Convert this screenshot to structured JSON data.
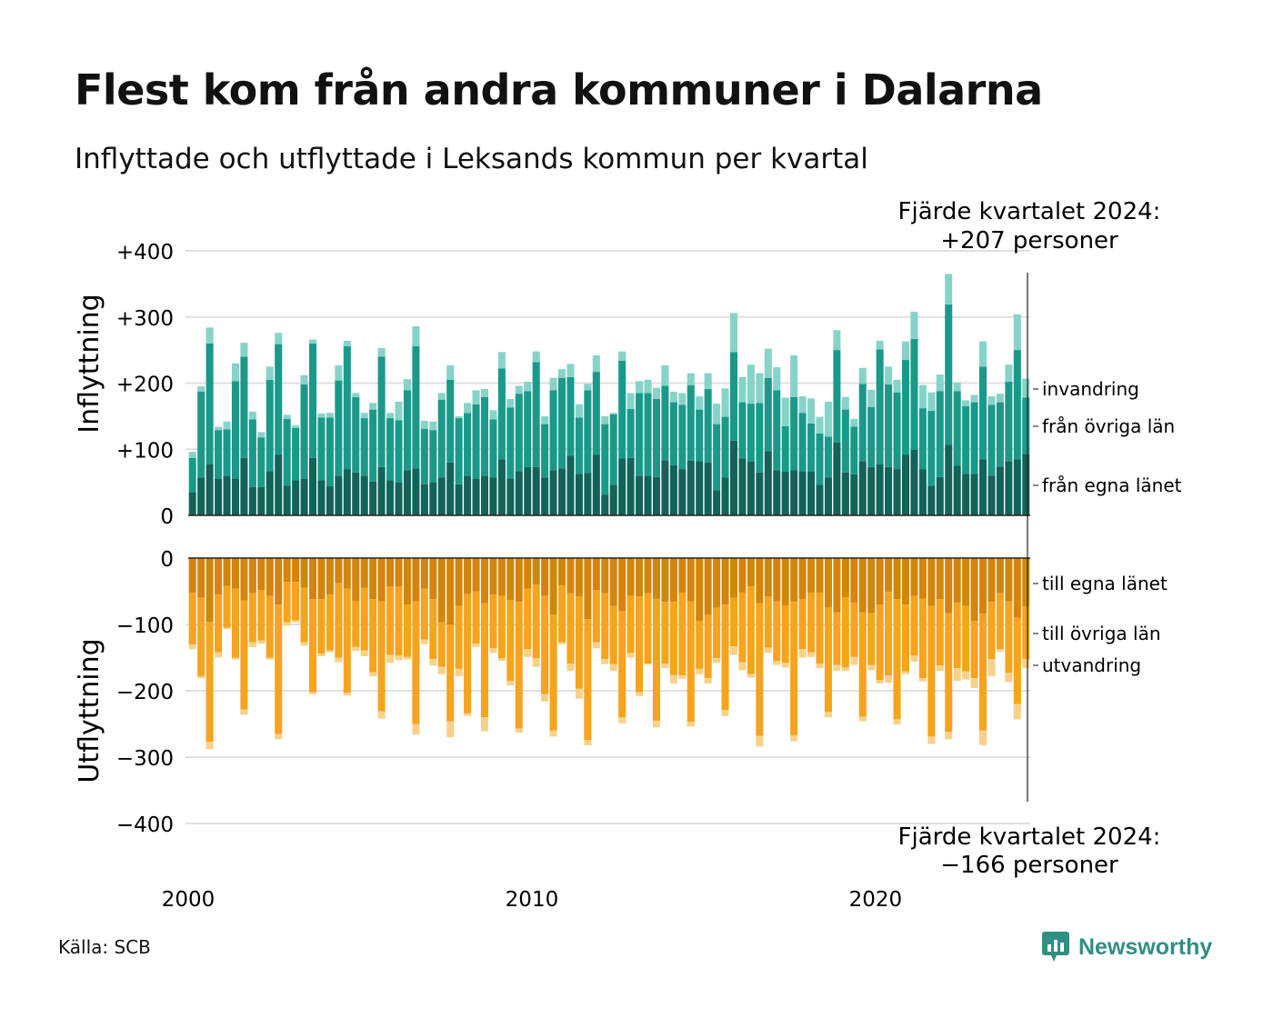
{
  "title": "Flest kom från andra kommuner i Dalarna",
  "subtitle": "Inflyttade och utflyttade i Leksands kommun per kvartal",
  "source": "Källa: SCB",
  "brand": "Newsworthy",
  "colors": {
    "in_own": "#12635a",
    "in_other": "#1a998a",
    "in_imm": "#86d3c9",
    "out_own": "#d4850c",
    "out_other": "#f6a31d",
    "out_emig": "#f8d189",
    "grid": "#e0e0e0",
    "axis": "#222222"
  },
  "chart_data": [
    {
      "type": "bar",
      "stacked": true,
      "panel": "Inflyttning",
      "ylabel": "Inflyttning",
      "ylim": [
        0,
        400
      ],
      "yticks": [
        0,
        100,
        200,
        300,
        400
      ],
      "ytick_labels": [
        "0",
        "+100",
        "+200",
        "+300",
        "+400"
      ],
      "annotation": {
        "line1": "Fjärde kvartalet 2024:",
        "line2": "+207 personer"
      },
      "x_start": 2000,
      "x_step": 0.25,
      "xticks": [
        2000,
        2010,
        2020
      ],
      "series": [
        {
          "name": "från egna länet",
          "values": [
            35,
            57,
            78,
            55,
            60,
            55,
            87,
            43,
            43,
            67,
            92,
            45,
            53,
            55,
            87,
            53,
            44,
            60,
            70,
            65,
            60,
            51,
            73,
            53,
            50,
            68,
            71,
            47,
            50,
            57,
            80,
            47,
            60,
            55,
            60,
            57,
            85,
            56,
            67,
            73,
            73,
            57,
            68,
            71,
            90,
            63,
            64,
            92,
            31,
            46,
            86,
            87,
            60,
            60,
            58,
            83,
            76,
            70,
            83,
            82,
            80,
            38,
            57,
            113,
            86,
            82,
            65,
            97,
            68,
            66,
            68,
            67,
            66,
            46,
            57,
            110,
            65,
            62,
            82,
            73,
            77,
            73,
            70,
            92,
            99,
            70,
            45,
            58,
            107,
            75,
            63,
            63,
            85,
            60,
            74,
            82,
            85,
            93
          ]
        },
        {
          "name": "från övriga län",
          "values": [
            52,
            130,
            182,
            74,
            70,
            148,
            153,
            102,
            75,
            138,
            167,
            101,
            79,
            143,
            173,
            95,
            104,
            144,
            186,
            114,
            87,
            109,
            167,
            94,
            94,
            121,
            185,
            84,
            79,
            118,
            125,
            100,
            95,
            113,
            119,
            88,
            137,
            107,
            117,
            115,
            159,
            81,
            121,
            137,
            119,
            85,
            125,
            125,
            107,
            107,
            148,
            74,
            125,
            125,
            118,
            113,
            95,
            97,
            114,
            78,
            111,
            100,
            92,
            134,
            85,
            87,
            105,
            111,
            121,
            69,
            111,
            88,
            73,
            78,
            62,
            140,
            95,
            72,
            117,
            91,
            174,
            125,
            116,
            143,
            168,
            92,
            113,
            130,
            212,
            113,
            102,
            108,
            140,
            107,
            97,
            120,
            165,
            85
          ]
        },
        {
          "name": "invandring",
          "values": [
            9,
            8,
            24,
            5,
            12,
            27,
            21,
            12,
            8,
            20,
            17,
            6,
            4,
            14,
            6,
            6,
            7,
            23,
            8,
            6,
            8,
            10,
            13,
            8,
            28,
            17,
            30,
            12,
            13,
            10,
            22,
            3,
            15,
            21,
            12,
            14,
            25,
            13,
            12,
            14,
            16,
            12,
            19,
            13,
            20,
            20,
            10,
            25,
            12,
            2,
            14,
            24,
            18,
            20,
            17,
            31,
            16,
            18,
            18,
            20,
            24,
            31,
            43,
            59,
            38,
            59,
            45,
            44,
            35,
            43,
            63,
            25,
            38,
            25,
            53,
            30,
            19,
            12,
            24,
            26,
            13,
            27,
            19,
            28,
            41,
            35,
            28,
            25,
            46,
            13,
            9,
            11,
            38,
            13,
            13,
            26,
            54,
            29
          ]
        }
      ]
    },
    {
      "type": "bar",
      "stacked": true,
      "panel": "Utflyttning",
      "ylabel": "Utflyttning",
      "ylim": [
        -400,
        0
      ],
      "yticks": [
        0,
        -100,
        -200,
        -300,
        -400
      ],
      "ytick_labels": [
        "0",
        "−100",
        "−200",
        "−300",
        "−400"
      ],
      "annotation": {
        "line1": "Fjärde kvartalet 2024:",
        "line2": "−166 personer"
      },
      "x_start": 2000,
      "x_step": 0.25,
      "xticks": [
        2000,
        2010,
        2020
      ],
      "series": [
        {
          "name": "till egna länet",
          "values": [
            -52,
            -60,
            -96,
            -55,
            -42,
            -46,
            -64,
            -53,
            -48,
            -57,
            -70,
            -36,
            -36,
            -45,
            -62,
            -62,
            -55,
            -38,
            -46,
            -65,
            -45,
            -62,
            -65,
            -43,
            -43,
            -70,
            -65,
            -46,
            -62,
            -97,
            -100,
            -72,
            -54,
            -50,
            -68,
            -55,
            -57,
            -63,
            -66,
            -46,
            -40,
            -57,
            -85,
            -41,
            -53,
            -58,
            -92,
            -48,
            -53,
            -72,
            -80,
            -57,
            -58,
            -53,
            -61,
            -66,
            -66,
            -52,
            -65,
            -95,
            -86,
            -75,
            -70,
            -60,
            -52,
            -43,
            -68,
            -58,
            -65,
            -72,
            -66,
            -62,
            -52,
            -52,
            -74,
            -82,
            -59,
            -67,
            -82,
            -83,
            -70,
            -51,
            -62,
            -70,
            -57,
            -61,
            -72,
            -62,
            -83,
            -67,
            -72,
            -95,
            -84,
            -66,
            -53,
            -65,
            -90,
            -73
          ]
        },
        {
          "name": "till övriga län",
          "values": [
            -78,
            -118,
            -181,
            -87,
            -63,
            -104,
            -164,
            -74,
            -76,
            -93,
            -195,
            -61,
            -58,
            -82,
            -140,
            -82,
            -84,
            -112,
            -157,
            -69,
            -94,
            -110,
            -166,
            -103,
            -104,
            -79,
            -185,
            -77,
            -90,
            -67,
            -146,
            -95,
            -180,
            -79,
            -172,
            -81,
            -94,
            -122,
            -191,
            -91,
            -111,
            -148,
            -175,
            -86,
            -106,
            -139,
            -182,
            -79,
            -99,
            -88,
            -160,
            -86,
            -144,
            -106,
            -184,
            -93,
            -110,
            -125,
            -182,
            -72,
            -95,
            -76,
            -159,
            -73,
            -105,
            -132,
            -200,
            -77,
            -90,
            -86,
            -201,
            -75,
            -90,
            -107,
            -158,
            -79,
            -106,
            -82,
            -157,
            -78,
            -114,
            -126,
            -181,
            -101,
            -90,
            -120,
            -197,
            -100,
            -179,
            -99,
            -99,
            -86,
            -176,
            -86,
            -84,
            -108,
            -130,
            -79
          ]
        },
        {
          "name": "utvandring",
          "values": [
            -7,
            -3,
            -11,
            -8,
            -2,
            -3,
            -8,
            -7,
            -5,
            -3,
            -8,
            -5,
            -3,
            -5,
            -3,
            -4,
            -3,
            -7,
            -4,
            -6,
            -9,
            -6,
            -11,
            -12,
            -7,
            -4,
            -16,
            -7,
            -10,
            -11,
            -24,
            -11,
            -4,
            -5,
            -21,
            -7,
            -4,
            -7,
            -6,
            -12,
            -13,
            -11,
            -9,
            -3,
            -11,
            -15,
            -8,
            -9,
            -8,
            -10,
            -9,
            -7,
            -6,
            -2,
            -10,
            -7,
            -13,
            -5,
            -7,
            -8,
            -8,
            -7,
            -9,
            -13,
            -12,
            -5,
            -16,
            -8,
            -6,
            -7,
            -9,
            -13,
            -7,
            -7,
            -8,
            -9,
            -5,
            -12,
            -7,
            -8,
            -5,
            -11,
            -8,
            -4,
            -9,
            -5,
            -11,
            -8,
            -11,
            -19,
            -12,
            -15,
            -22,
            -26,
            -4,
            -14,
            -23,
            -14
          ]
        }
      ]
    }
  ]
}
